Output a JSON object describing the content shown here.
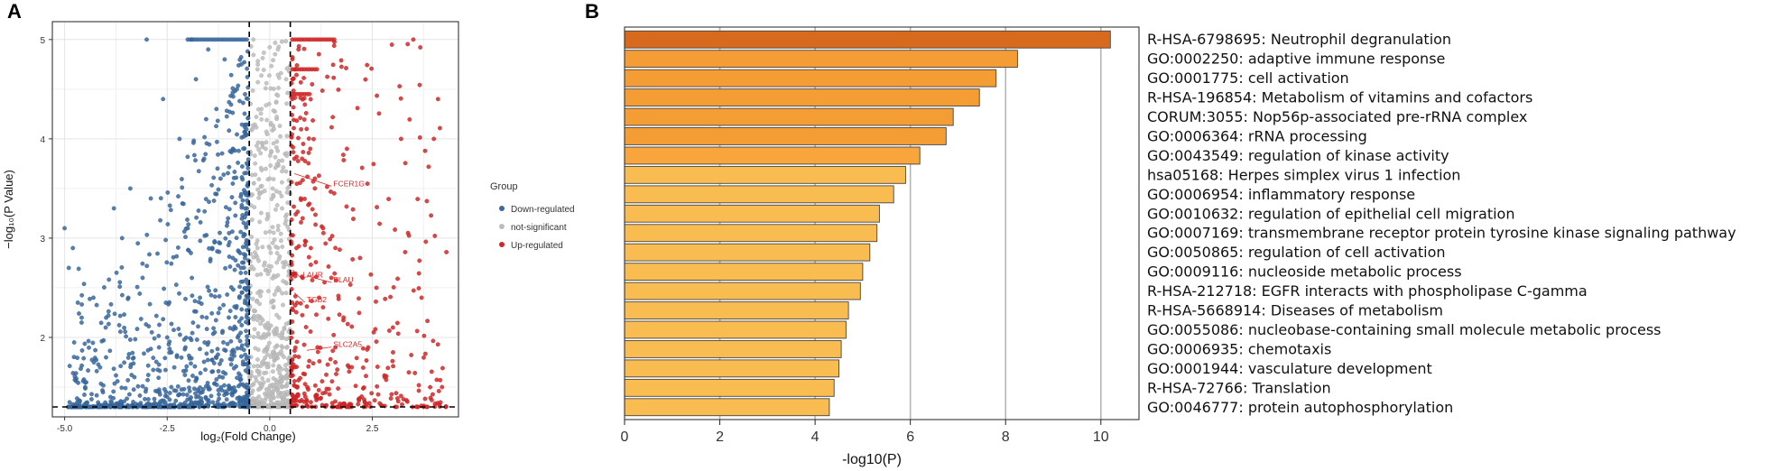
{
  "panel_a": {
    "label": "A",
    "x_axis_label": "log₂(Fold Change)",
    "y_axis_label": "−log₁₀(P Value)",
    "legend": {
      "title": "Group",
      "items": [
        {
          "name": "Down-regulated",
          "color": "#3a6aa0"
        },
        {
          "name": "not-significant",
          "color": "#bdbdbd"
        },
        {
          "name": "Up-regulated",
          "color": "#d62728"
        }
      ]
    }
  },
  "panel_b": {
    "label": "B",
    "x_axis_label": "-log10(P)"
  },
  "chart_data": [
    {
      "type": "scatter",
      "panel": "A",
      "xlabel": "log₂(Fold Change)",
      "ylabel": "−log₁₀(P Value)",
      "xlim": [
        -5.3,
        4.6
      ],
      "ylim": [
        1.2,
        5.18
      ],
      "x_ticks": [
        -5.0,
        -2.5,
        0.0,
        2.5
      ],
      "x_tick_labels": [
        "-5.0",
        "-2.5",
        "0.0",
        "2.5"
      ],
      "y_ticks": [
        2,
        3,
        4,
        5
      ],
      "y_tick_labels": [
        "2",
        "3",
        "4",
        "5"
      ],
      "grid": true,
      "legend_position": "right",
      "thresholds": {
        "fold_change": [
          -0.5,
          0.5
        ],
        "p_value_line": 1.3
      },
      "series": [
        {
          "name": "Down-regulated",
          "color": "#3a6aa0"
        },
        {
          "name": "not-significant",
          "color": "#bdbdbd"
        },
        {
          "name": "Up-regulated",
          "color": "#d62728"
        }
      ],
      "sample_points": {
        "down": [
          [
            -5.0,
            3.1
          ],
          [
            -4.9,
            2.7
          ],
          [
            -4.8,
            2.9
          ],
          [
            -4.5,
            1.5
          ],
          [
            -4.3,
            2.4
          ],
          [
            -4.0,
            2.1
          ],
          [
            -3.8,
            3.3
          ],
          [
            -3.6,
            3.0
          ],
          [
            -3.4,
            3.5
          ],
          [
            -3.3,
            1.6
          ],
          [
            -3.1,
            2.6
          ],
          [
            -3.0,
            5.0
          ],
          [
            -2.9,
            3.4
          ],
          [
            -2.7,
            1.9
          ],
          [
            -2.6,
            4.4
          ],
          [
            -2.5,
            2.0
          ],
          [
            -2.4,
            1.5
          ],
          [
            -2.2,
            4.0
          ],
          [
            -2.0,
            3.1
          ],
          [
            -1.9,
            5.0
          ],
          [
            -1.8,
            4.6
          ],
          [
            -1.7,
            2.4
          ],
          [
            -1.6,
            3.8
          ],
          [
            -1.5,
            4.9
          ],
          [
            -1.4,
            2.9
          ],
          [
            -1.3,
            4.3
          ],
          [
            -1.2,
            3.6
          ],
          [
            -1.1,
            4.8
          ],
          [
            -1.0,
            2.2
          ],
          [
            -0.9,
            3.9
          ],
          [
            -0.8,
            4.5
          ],
          [
            -0.7,
            2.7
          ],
          [
            -0.6,
            3.3
          ]
        ],
        "not_significant": [
          [
            -0.4,
            5.0
          ],
          [
            -0.3,
            4.7
          ],
          [
            -0.2,
            4.3
          ],
          [
            -0.1,
            3.9
          ],
          [
            0.0,
            3.6
          ],
          [
            0.1,
            4.1
          ],
          [
            0.2,
            4.9
          ],
          [
            0.3,
            3.3
          ],
          [
            0.4,
            4.6
          ],
          [
            -0.3,
            2.9
          ],
          [
            0.2,
            2.5
          ],
          [
            -0.1,
            2.1
          ],
          [
            0.1,
            1.8
          ],
          [
            0.3,
            1.5
          ]
        ],
        "up": [
          [
            0.55,
            4.4
          ],
          [
            0.6,
            3.8
          ],
          [
            0.7,
            4.9
          ],
          [
            0.8,
            3.2
          ],
          [
            0.9,
            4.1
          ],
          [
            1.0,
            2.9
          ],
          [
            1.1,
            3.6
          ],
          [
            1.2,
            2.4
          ],
          [
            1.3,
            3.1
          ],
          [
            1.5,
            2.6
          ],
          [
            1.6,
            1.9
          ],
          [
            1.8,
            2.2
          ],
          [
            2.0,
            1.7
          ],
          [
            2.2,
            2.8
          ],
          [
            2.4,
            1.9
          ],
          [
            2.6,
            2.5
          ],
          [
            2.8,
            1.6
          ],
          [
            3.0,
            2.1
          ],
          [
            3.2,
            4.0
          ],
          [
            3.5,
            5.0
          ],
          [
            3.7,
            2.4
          ],
          [
            4.0,
            4.0
          ],
          [
            4.1,
            4.4
          ],
          [
            4.2,
            1.5
          ]
        ]
      },
      "annotations": [
        {
          "text": "FCER1G",
          "x": 1.55,
          "y": 3.55,
          "x_from": 0.6,
          "y_from": 3.65
        },
        {
          "text": "LAUR",
          "x": 0.8,
          "y": 2.63,
          "x_from": 0.55,
          "y_from": 2.68
        },
        {
          "text": "PLAU",
          "x": 1.55,
          "y": 2.58,
          "x_from": 0.9,
          "y_from": 2.62
        },
        {
          "text": "TGB2",
          "x": 0.9,
          "y": 2.38,
          "x_from": 0.6,
          "y_from": 2.45
        },
        {
          "text": "SLC2A5",
          "x": 1.55,
          "y": 1.93,
          "x_from": 0.9,
          "y_from": 1.87
        }
      ]
    },
    {
      "type": "bar",
      "orientation": "horizontal",
      "panel": "B",
      "xlabel": "-log10(P)",
      "xlim": [
        0,
        10.8
      ],
      "x_ticks": [
        0,
        2,
        4,
        6,
        8,
        10
      ],
      "x_tick_labels": [
        "0",
        "2",
        "4",
        "6",
        "8",
        "10"
      ],
      "grid": true,
      "categories": [
        "R-HSA-6798695: Neutrophil degranulation",
        "GO:0002250: adaptive immune response",
        "GO:0001775: cell activation",
        "R-HSA-196854: Metabolism of vitamins and cofactors",
        "CORUM:3055: Nop56p-associated pre-rRNA complex",
        "GO:0006364: rRNA processing",
        "GO:0043549: regulation of kinase activity",
        "hsa05168: Herpes simplex virus 1 infection",
        "GO:0006954: inflammatory response",
        "GO:0010632: regulation of epithelial cell migration",
        "GO:0007169: transmembrane receptor protein tyrosine kinase signaling pathway",
        "GO:0050865: regulation of cell activation",
        "GO:0009116: nucleoside metabolic process",
        "R-HSA-212718: EGFR interacts with phospholipase C-gamma",
        "R-HSA-5668914: Diseases of metabolism",
        "GO:0055086: nucleobase-containing small molecule metabolic process",
        "GO:0006935: chemotaxis",
        "GO:0001944: vasculature development",
        "R-HSA-72766: Translation",
        "GO:0046777: protein autophosphorylation"
      ],
      "values": [
        10.2,
        8.25,
        7.8,
        7.45,
        6.9,
        6.75,
        6.2,
        5.9,
        5.65,
        5.35,
        5.3,
        5.15,
        5.0,
        4.95,
        4.7,
        4.65,
        4.55,
        4.5,
        4.4,
        4.3
      ],
      "bar_colors": [
        "#d86a1e",
        "#f59d35",
        "#f59d35",
        "#f59d35",
        "#f59d35",
        "#f59d35",
        "#f7a53c",
        "#f9bc50",
        "#f9bc50",
        "#f9bc50",
        "#f9bc50",
        "#f9bc50",
        "#f9bc50",
        "#f9bc50",
        "#f9bc50",
        "#f9bc50",
        "#f9bc50",
        "#f9bc50",
        "#f9bc50",
        "#f9bc50"
      ]
    }
  ]
}
